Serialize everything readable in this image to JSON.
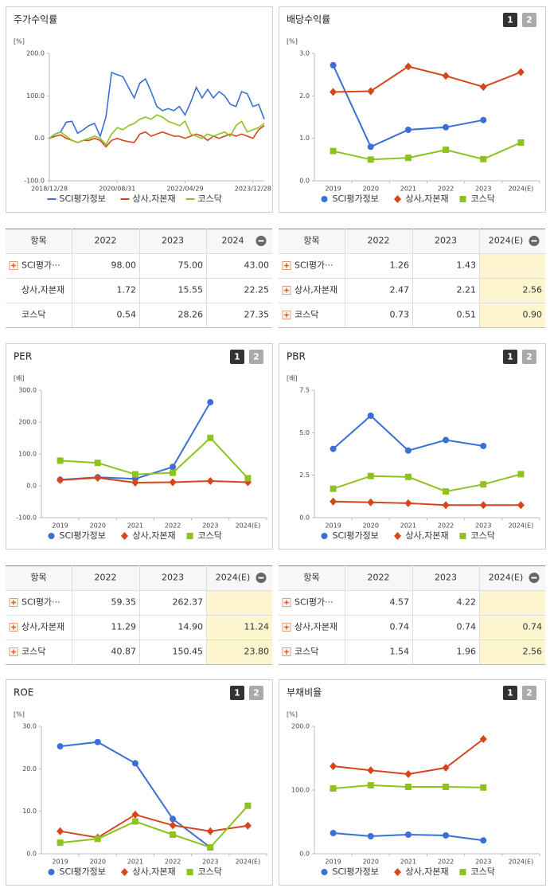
{
  "chart_data": [
    {
      "type": "line",
      "title": "주가수익률",
      "y_unit": "[%]",
      "categories": [
        "2018/12/28",
        null,
        null,
        null,
        null,
        null,
        null,
        null,
        null,
        null,
        null,
        null,
        "2020/08/31",
        null,
        null,
        null,
        null,
        null,
        null,
        null,
        null,
        null,
        null,
        null,
        "2022/04/29",
        null,
        null,
        null,
        null,
        null,
        null,
        null,
        null,
        null,
        null,
        null,
        "2023/12/28",
        null,
        null
      ],
      "series": [
        {
          "name": "SCI평가정보",
          "color": "#3a6fd8",
          "values": [
            0,
            10,
            15,
            38,
            40,
            12,
            20,
            30,
            35,
            5,
            50,
            155,
            150,
            145,
            120,
            95,
            130,
            140,
            110,
            75,
            65,
            70,
            65,
            75,
            55,
            85,
            120,
            95,
            115,
            95,
            110,
            100,
            80,
            75,
            110,
            105,
            75,
            80,
            45
          ]
        },
        {
          "name": "상사,자본재",
          "color": "#d6461c",
          "values": [
            0,
            5,
            8,
            0,
            -5,
            -10,
            -5,
            -5,
            0,
            -5,
            -20,
            -5,
            0,
            -5,
            -8,
            -10,
            10,
            15,
            5,
            10,
            15,
            10,
            5,
            5,
            0,
            5,
            10,
            5,
            -5,
            5,
            0,
            5,
            10,
            5,
            10,
            5,
            0,
            20,
            30
          ]
        },
        {
          "name": "코스닥",
          "color": "#8dc21f",
          "values": [
            0,
            10,
            15,
            5,
            -5,
            -10,
            -5,
            0,
            5,
            0,
            -15,
            10,
            25,
            20,
            30,
            35,
            45,
            50,
            45,
            55,
            50,
            40,
            35,
            30,
            40,
            10,
            5,
            0,
            10,
            5,
            10,
            15,
            5,
            30,
            40,
            15,
            20,
            25,
            35
          ]
        }
      ],
      "ylim": [
        -100,
        200
      ],
      "yticks": [
        {
          "value": -100,
          "label": "-100.0"
        },
        {
          "value": 0,
          "label": "0.0"
        },
        {
          "value": 100,
          "label": "100.0"
        },
        {
          "value": 200,
          "label": "200.0"
        }
      ]
    },
    {
      "type": "line",
      "title": "배당수익률",
      "y_unit": "[%]",
      "buttons": [
        "1",
        "2"
      ],
      "categories": [
        "2019",
        "2020",
        "2021",
        "2022",
        "2023",
        "2024(E)"
      ],
      "series": [
        {
          "name": "SCI평가정보",
          "color": "#3a6fd8",
          "marker": "circle",
          "values": [
            2.72,
            0.8,
            1.2,
            1.26,
            1.43,
            null
          ]
        },
        {
          "name": "상사,자본재",
          "color": "#d6461c",
          "marker": "diamond",
          "values": [
            2.09,
            2.11,
            2.69,
            2.47,
            2.21,
            2.56
          ]
        },
        {
          "name": "코스닥",
          "color": "#8dc21f",
          "marker": "square",
          "values": [
            0.7,
            0.5,
            0.54,
            0.73,
            0.51,
            0.9
          ]
        }
      ],
      "ylim": [
        0,
        3
      ],
      "yticks": [
        {
          "value": 0,
          "label": "0.0"
        },
        {
          "value": 1,
          "label": "1.0"
        },
        {
          "value": 2,
          "label": "2.0"
        },
        {
          "value": 3,
          "label": "3.0"
        }
      ]
    },
    {
      "type": "line",
      "title": "PER",
      "y_unit": "[배]",
      "buttons": [
        "1",
        "2"
      ],
      "categories": [
        "2019",
        "2020",
        "2021",
        "2022",
        "2023",
        "2024(E)"
      ],
      "series": [
        {
          "name": "SCI평가정보",
          "color": "#3a6fd8",
          "marker": "circle",
          "values": [
            19,
            27,
            22,
            59.35,
            262.37,
            null
          ]
        },
        {
          "name": "상사,자본재",
          "color": "#d6461c",
          "marker": "diamond",
          "values": [
            18,
            25,
            10,
            11.29,
            14.9,
            11.24
          ]
        },
        {
          "name": "코스닥",
          "color": "#8dc21f",
          "marker": "square",
          "values": [
            79,
            72,
            36,
            40.87,
            150.45,
            23.8
          ]
        }
      ],
      "ylim": [
        -100,
        300
      ],
      "yticks": [
        {
          "value": -100,
          "label": "-100.0"
        },
        {
          "value": 0,
          "label": "0.0"
        },
        {
          "value": 100,
          "label": "100.0"
        },
        {
          "value": 200,
          "label": "200.0"
        },
        {
          "value": 300,
          "label": "300.0"
        }
      ]
    },
    {
      "type": "line",
      "title": "PBR",
      "y_unit": "[배]",
      "buttons": [
        "1",
        "2"
      ],
      "categories": [
        "2019",
        "2020",
        "2021",
        "2022",
        "2023",
        "2024(E)"
      ],
      "series": [
        {
          "name": "SCI평가정보",
          "color": "#3a6fd8",
          "marker": "circle",
          "values": [
            4.05,
            6.0,
            3.95,
            4.57,
            4.22,
            null
          ]
        },
        {
          "name": "상사,자본재",
          "color": "#d6461c",
          "marker": "diamond",
          "values": [
            0.95,
            0.9,
            0.85,
            0.74,
            0.74,
            0.74
          ]
        },
        {
          "name": "코스닥",
          "color": "#8dc21f",
          "marker": "square",
          "values": [
            1.7,
            2.45,
            2.4,
            1.54,
            1.96,
            2.56
          ]
        }
      ],
      "ylim": [
        0,
        7.5
      ],
      "yticks": [
        {
          "value": 0,
          "label": "0.0"
        },
        2.5,
        {
          "value": 5,
          "label": "5.0"
        },
        7.5
      ]
    },
    {
      "type": "line",
      "title": "ROE",
      "y_unit": "[%]",
      "buttons": [
        "1",
        "2"
      ],
      "categories": [
        "2019",
        "2020",
        "2021",
        "2022",
        "2023",
        "2024(E)"
      ],
      "series": [
        {
          "name": "SCI평가정보",
          "color": "#3a6fd8",
          "marker": "circle",
          "values": [
            25.3,
            26.3,
            21.3,
            8.2,
            1.5,
            null
          ]
        },
        {
          "name": "상사,자본재",
          "color": "#d6461c",
          "marker": "diamond",
          "values": [
            5.3,
            3.8,
            9.2,
            6.7,
            5.3,
            6.6
          ]
        },
        {
          "name": "코스닥",
          "color": "#8dc21f",
          "marker": "square",
          "values": [
            2.6,
            3.5,
            7.6,
            4.5,
            1.5,
            11.3
          ]
        }
      ],
      "ylim": [
        0,
        30
      ],
      "yticks": [
        {
          "value": 0,
          "label": "0.0"
        },
        {
          "value": 10,
          "label": "10.0"
        },
        {
          "value": 20,
          "label": "20.0"
        },
        {
          "value": 30,
          "label": "30.0"
        }
      ]
    },
    {
      "type": "line",
      "title": "부채비율",
      "y_unit": "[%]",
      "buttons": [
        "1",
        "2"
      ],
      "categories": [
        "2019",
        "2020",
        "2021",
        "2022",
        "2023",
        "2024(E)"
      ],
      "series": [
        {
          "name": "SCI평가정보",
          "color": "#3a6fd8",
          "marker": "circle",
          "values": [
            32.5,
            27.5,
            30,
            28.8,
            21,
            null
          ]
        },
        {
          "name": "상사,자본재",
          "color": "#d6461c",
          "marker": "diamond",
          "values": [
            137.5,
            131,
            125,
            135,
            180,
            null
          ]
        },
        {
          "name": "코스닥",
          "color": "#8dc21f",
          "marker": "square",
          "values": [
            102.5,
            107.5,
            105,
            105,
            104,
            null
          ]
        }
      ],
      "ylim": [
        0,
        200
      ],
      "yticks": [
        {
          "value": 0,
          "label": "0.0"
        },
        {
          "value": 100,
          "label": "100.0"
        },
        {
          "value": 200,
          "label": "200.0"
        }
      ]
    }
  ],
  "tables": [
    {
      "header": [
        "항목",
        "2022",
        "2023",
        "2024"
      ],
      "expand": [
        true,
        false,
        false
      ],
      "highlight_last": false,
      "rows": [
        [
          "SCI평가···",
          "98.00",
          "75.00",
          "43.00"
        ],
        [
          "상사,자본재",
          "1.72",
          "15.55",
          "22.25"
        ],
        [
          "코스닥",
          "0.54",
          "28.26",
          "27.35"
        ]
      ]
    },
    {
      "header": [
        "항목",
        "2022",
        "2023",
        "2024(E)"
      ],
      "expand": [
        true,
        true,
        true
      ],
      "highlight_last": true,
      "rows": [
        [
          "SCI평가···",
          "1.26",
          "1.43",
          null
        ],
        [
          "상사,자본재",
          "2.47",
          "2.21",
          "2.56"
        ],
        [
          "코스닥",
          "0.73",
          "0.51",
          "0.90"
        ]
      ]
    },
    {
      "header": [
        "항목",
        "2022",
        "2023",
        "2024(E)"
      ],
      "expand": [
        true,
        true,
        true
      ],
      "highlight_last": true,
      "rows": [
        [
          "SCI평가···",
          "59.35",
          "262.37",
          null
        ],
        [
          "상사,자본재",
          "11.29",
          "14.90",
          "11.24"
        ],
        [
          "코스닥",
          "40.87",
          "150.45",
          "23.80"
        ]
      ]
    },
    {
      "header": [
        "항목",
        "2022",
        "2023",
        "2024(E)"
      ],
      "expand": [
        true,
        true,
        true
      ],
      "highlight_last": true,
      "rows": [
        [
          "SCI평가···",
          "4.57",
          "4.22",
          null
        ],
        [
          "상사,자본재",
          "0.74",
          "0.74",
          "0.74"
        ],
        [
          "코스닥",
          "1.54",
          "1.96",
          "2.56"
        ]
      ]
    }
  ]
}
